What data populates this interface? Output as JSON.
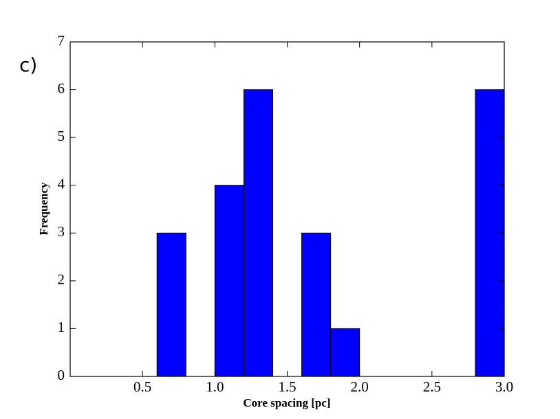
{
  "chart_data": {
    "type": "histogram",
    "panel_label": "c)",
    "xlabel": "Core spacing [pc]",
    "ylabel": "Frequency",
    "bins": [
      0.0,
      0.2,
      0.4,
      0.6,
      0.8,
      1.0,
      1.2,
      1.4,
      1.6,
      1.8,
      2.0,
      2.2,
      2.4,
      2.6,
      2.8,
      3.0
    ],
    "values": [
      0,
      0,
      0,
      3,
      0,
      4,
      6,
      0,
      3,
      1,
      0,
      0,
      0,
      0,
      6
    ],
    "color": "#0000ff",
    "xlim": [
      0,
      3.0
    ],
    "ylim": [
      0,
      7
    ],
    "xticks": [
      0.5,
      {
        "value": 1,
        "label": "1.0"
      },
      1.5,
      {
        "value": 2,
        "label": "2.0"
      },
      2.5,
      {
        "value": 3,
        "label": "3.0"
      }
    ],
    "yticks": [
      0,
      1,
      2,
      3,
      4,
      5,
      6,
      7
    ]
  }
}
